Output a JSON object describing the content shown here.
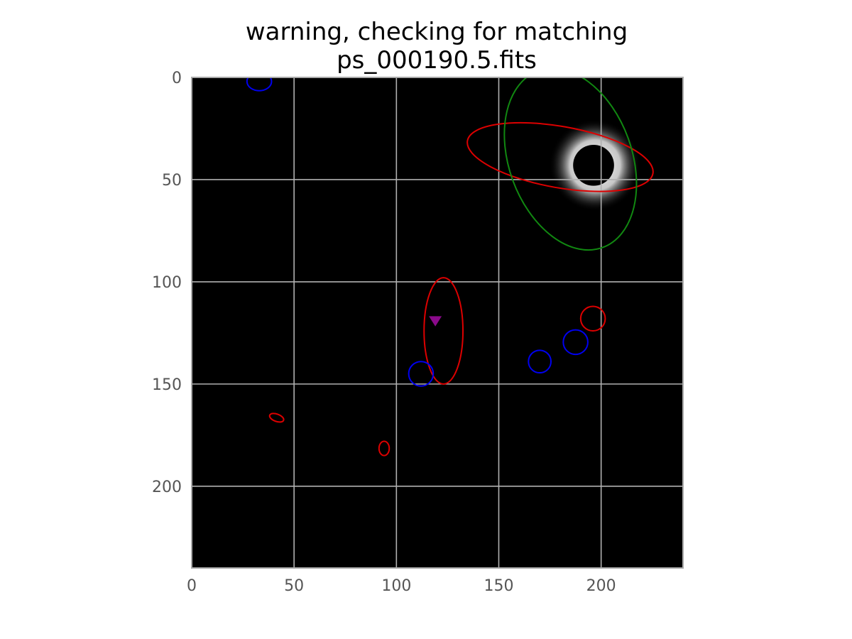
{
  "chart_data": {
    "type": "scatter",
    "title_lines": [
      "warning, checking for matching",
      "ps_000190.5.fits"
    ],
    "xlabel": "",
    "ylabel": "",
    "xlim": [
      0,
      240
    ],
    "ylim": [
      240,
      0
    ],
    "y_axis_inverted": true,
    "grid": true,
    "x_ticks": [
      0,
      50,
      100,
      150,
      200
    ],
    "y_ticks": [
      0,
      50,
      100,
      150,
      200
    ],
    "background": "image (black, grayscale)",
    "bright_source": {
      "x": 197,
      "y": 43,
      "core_radius": 10,
      "halo_radius": 14
    },
    "ellipses": [
      {
        "name": "red-ellipse",
        "color": "#dd0000",
        "x": 180,
        "y": 39,
        "rx": 46,
        "ry": 15,
        "angle_deg": 10
      },
      {
        "name": "green-ellipse",
        "color": "#118811",
        "x": 185,
        "y": 40,
        "rx": 30,
        "ry": 46,
        "angle_deg": -20
      },
      {
        "name": "red-ellipse",
        "color": "#dd0000",
        "x": 123,
        "y": 124,
        "rx": 9.5,
        "ry": 26,
        "angle_deg": 0
      },
      {
        "name": "red-ellipse",
        "color": "#dd0000",
        "x": 196,
        "y": 118,
        "rx": 6,
        "ry": 6,
        "angle_deg": 0
      },
      {
        "name": "red-ellipse",
        "color": "#dd0000",
        "x": 41.5,
        "y": 166.5,
        "rx": 3.6,
        "ry": 1.8,
        "angle_deg": 20
      },
      {
        "name": "red-ellipse",
        "color": "#dd0000",
        "x": 94,
        "y": 181.5,
        "rx": 2.5,
        "ry": 3.5,
        "angle_deg": 0
      },
      {
        "name": "blue-circle",
        "color": "#0000ee",
        "x": 33,
        "y": 2,
        "rx": 6,
        "ry": 4.5,
        "angle_deg": 0
      },
      {
        "name": "blue-circle",
        "color": "#0000ee",
        "x": 112,
        "y": 145,
        "rx": 6,
        "ry": 6,
        "angle_deg": 0
      },
      {
        "name": "blue-circle",
        "color": "#0000ee",
        "x": 170,
        "y": 139,
        "rx": 5.5,
        "ry": 5.5,
        "angle_deg": 0
      },
      {
        "name": "blue-circle",
        "color": "#0000ee",
        "x": 187.5,
        "y": 129.5,
        "rx": 6,
        "ry": 6,
        "angle_deg": 0
      }
    ],
    "markers": [
      {
        "name": "purple-triangle-marker",
        "shape": "triangle-down",
        "color": "#8b0a8b",
        "x": 119,
        "y": 119
      }
    ]
  }
}
